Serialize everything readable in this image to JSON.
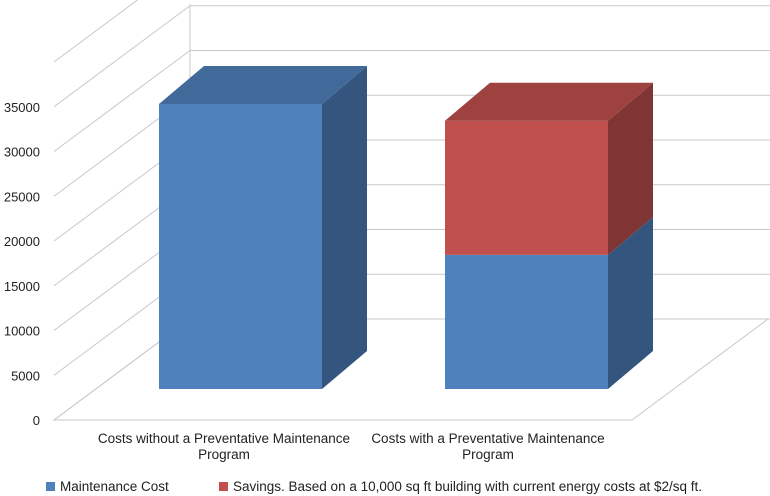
{
  "chart_data": {
    "type": "bar",
    "stacked": true,
    "three_d": true,
    "categories": [
      [
        "Costs without a Preventative Maintenance",
        "Program"
      ],
      [
        "Costs with a  Preventative Maintenance",
        "Program"
      ]
    ],
    "series": [
      {
        "name": "Maintenance Cost",
        "values": [
          34000,
          16000
        ],
        "color": "#4f81bd"
      },
      {
        "name": "Savings. Based on a 10,000 sq ft building with current energy costs at $2/sq ft.",
        "values": [
          0,
          16000
        ],
        "color": "#c0504d"
      }
    ],
    "y_ticks": [
      0,
      5000,
      10000,
      15000,
      20000,
      25000,
      30000,
      35000
    ],
    "ylim": [
      0,
      40000
    ],
    "grid": true,
    "legend_position": "bottom"
  }
}
